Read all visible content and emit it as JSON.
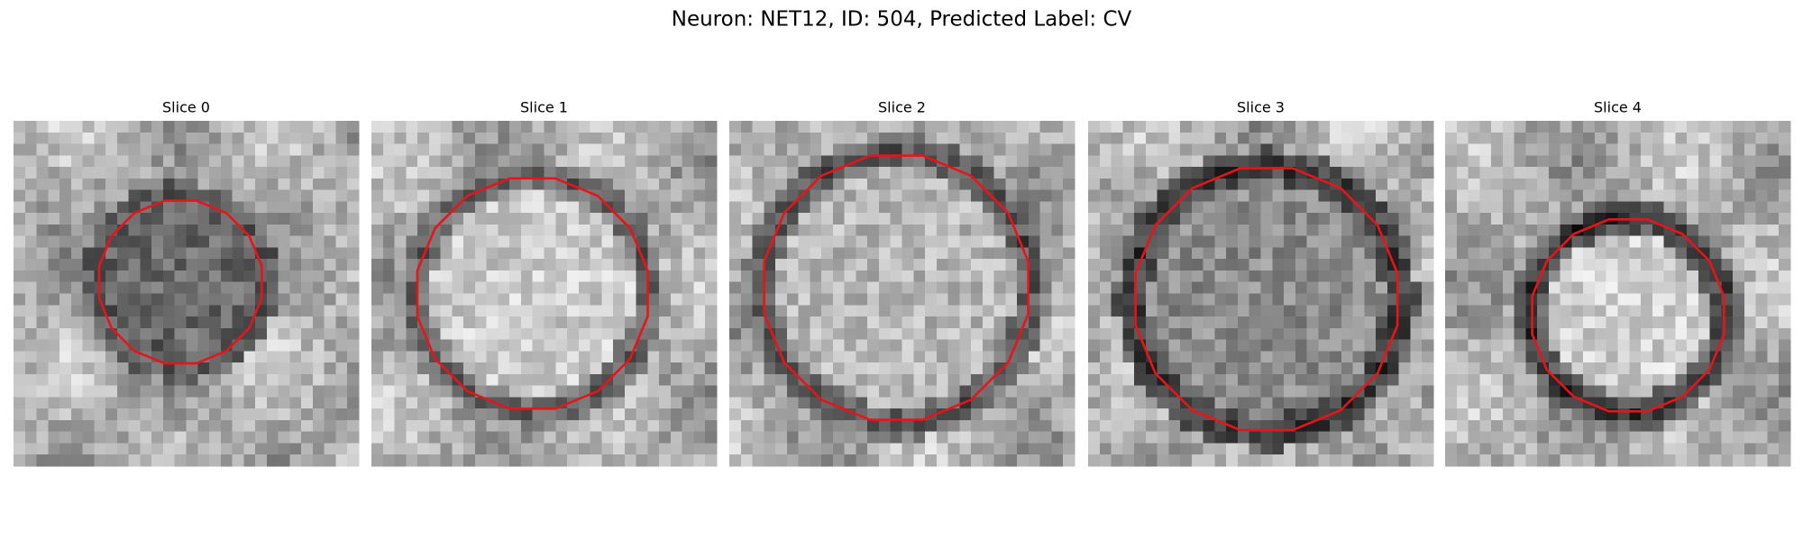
{
  "title": "Neuron: NET12, ID: 504, Predicted Label: CV",
  "panels": [
    {
      "title": "Slice 0"
    },
    {
      "title": "Slice 1"
    },
    {
      "title": "Slice 2"
    },
    {
      "title": "Slice 3"
    },
    {
      "title": "Slice 4"
    }
  ]
}
